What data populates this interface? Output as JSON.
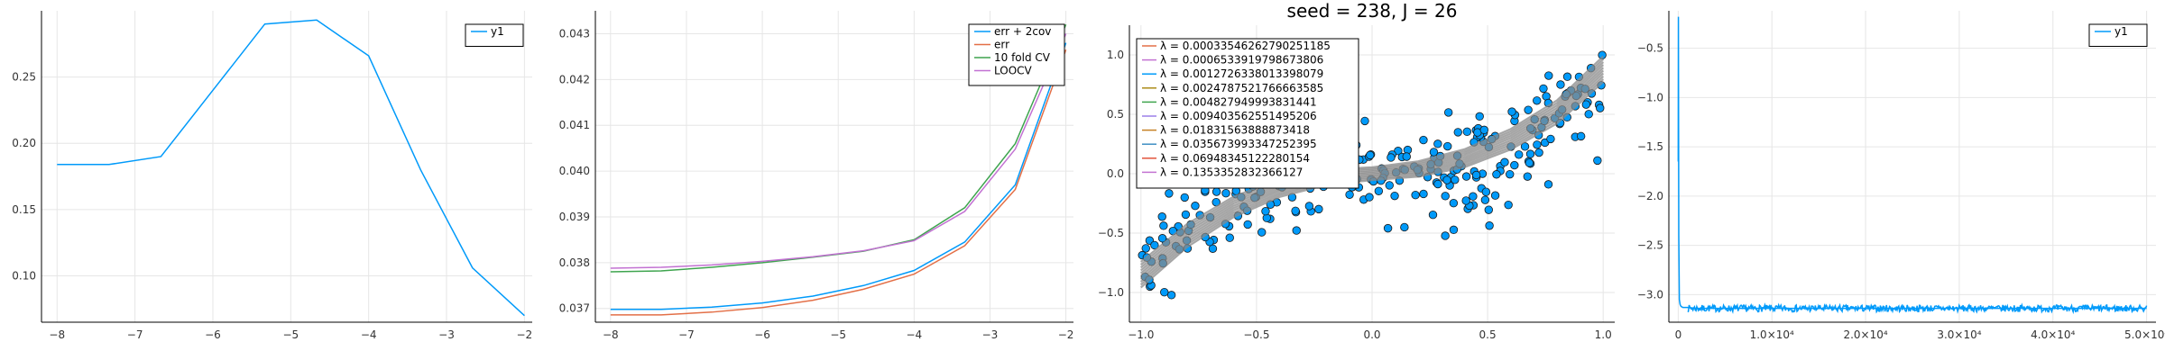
{
  "chart_data": [
    {
      "type": "line",
      "title": "",
      "xlabel": "",
      "ylabel": "",
      "xlim": [
        -8.2,
        -1.9
      ],
      "ylim": [
        0.065,
        0.3
      ],
      "xticks": [
        -8,
        -7,
        -6,
        -5,
        -4,
        -3,
        -2
      ],
      "xtick_labels": [
        "−8",
        "−7",
        "−6",
        "−5",
        "−4",
        "−3",
        "−2"
      ],
      "yticks": [
        0.1,
        0.15,
        0.2,
        0.25
      ],
      "ytick_labels": [
        "0.10",
        "0.15",
        "0.20",
        "0.25"
      ],
      "grid": true,
      "legend_position": "top-right",
      "series": [
        {
          "name": "y1",
          "color": "#009AFA",
          "x": [
            -8.0,
            -7.333,
            -6.667,
            -6.0,
            -5.333,
            -4.667,
            -4.0,
            -3.333,
            -2.667,
            -2.0
          ],
          "y": [
            0.184,
            0.184,
            0.19,
            0.24,
            0.29,
            0.293,
            0.266,
            0.18,
            0.106,
            0.07
          ]
        }
      ]
    },
    {
      "type": "line",
      "title": "",
      "xlabel": "",
      "ylabel": "",
      "xlim": [
        -8.2,
        -1.9
      ],
      "ylim": [
        0.0367,
        0.0435
      ],
      "xticks": [
        -8,
        -7,
        -6,
        -5,
        -4,
        -3,
        -2
      ],
      "xtick_labels": [
        "−8",
        "−7",
        "−6",
        "−5",
        "−4",
        "−3",
        "−2"
      ],
      "yticks": [
        0.037,
        0.038,
        0.039,
        0.04,
        0.041,
        0.042,
        0.043
      ],
      "ytick_labels": [
        "0.037",
        "0.038",
        "0.039",
        "0.040",
        "0.041",
        "0.042",
        "0.043"
      ],
      "grid": true,
      "legend_position": "top-right",
      "series": [
        {
          "name": "err + 2cov",
          "color": "#009AFA",
          "x": [
            -8.0,
            -7.333,
            -6.667,
            -6.0,
            -5.333,
            -4.667,
            -4.0,
            -3.333,
            -2.667,
            -2.0
          ],
          "y": [
            0.03698,
            0.03698,
            0.03703,
            0.03712,
            0.03727,
            0.0375,
            0.03783,
            0.03845,
            0.0397,
            0.0428
          ]
        },
        {
          "name": "err",
          "color": "#E36F47",
          "x": [
            -8.0,
            -7.333,
            -6.667,
            -6.0,
            -5.333,
            -4.667,
            -4.0,
            -3.333,
            -2.667,
            -2.0
          ],
          "y": [
            0.03686,
            0.03686,
            0.03692,
            0.03702,
            0.03718,
            0.03742,
            0.03775,
            0.03837,
            0.0396,
            0.04265
          ]
        },
        {
          "name": "10 fold CV",
          "color": "#3EA44E",
          "x": [
            -8.0,
            -7.333,
            -6.667,
            -6.0,
            -5.333,
            -4.667,
            -4.0,
            -3.333,
            -2.667,
            -2.0
          ],
          "y": [
            0.0378,
            0.03782,
            0.0379,
            0.038,
            0.03812,
            0.03825,
            0.0385,
            0.0392,
            0.0406,
            0.0432
          ]
        },
        {
          "name": "LOOCV",
          "color": "#C271D2",
          "x": [
            -8.0,
            -7.333,
            -6.667,
            -6.0,
            -5.333,
            -4.667,
            -4.0,
            -3.333,
            -2.667,
            -2.0
          ],
          "y": [
            0.03788,
            0.0379,
            0.03795,
            0.03803,
            0.03813,
            0.03826,
            0.03848,
            0.03912,
            0.04048,
            0.043
          ]
        }
      ]
    },
    {
      "type": "scatter",
      "title": "seed = 238, J = 26",
      "xlabel": "",
      "ylabel": "",
      "xlim": [
        -1.05,
        1.05
      ],
      "ylim": [
        -1.25,
        1.25
      ],
      "xticks": [
        -1.0,
        -0.5,
        0.0,
        0.5,
        1.0
      ],
      "xtick_labels": [
        "−1.0",
        "−0.5",
        "0.0",
        "0.5",
        "1.0"
      ],
      "yticks": [
        -1.0,
        -0.5,
        0.0,
        0.5,
        1.0
      ],
      "ytick_labels": [
        "−1.0",
        "−0.5",
        "0.0",
        "0.5",
        "1.0"
      ],
      "grid": true,
      "legend_position": "top-left",
      "scatter_color": "#009AFA",
      "n_points": 300,
      "fit_color": "#888888",
      "fit_curve": {
        "x": [
          -1.0,
          -0.8,
          -0.6,
          -0.4,
          -0.2,
          0.0,
          0.2,
          0.4,
          0.6,
          0.8,
          1.0
        ],
        "y": [
          -0.85,
          -0.52,
          -0.28,
          -0.12,
          -0.03,
          0.0,
          0.04,
          0.13,
          0.29,
          0.52,
          0.88
        ]
      },
      "legend": [
        {
          "label": "λ = 0.00033546262790251185",
          "color": "#E36F47"
        },
        {
          "label": "λ = 0.0006533919798673806",
          "color": "#C271D2"
        },
        {
          "label": "λ = 0.0012726338013398079",
          "color": "#009AFA"
        },
        {
          "label": "λ = 0.0024787521766663585",
          "color": "#AC8D18"
        },
        {
          "label": "λ = 0.004827949993831441",
          "color": "#3EA44E"
        },
        {
          "label": "λ = 0.009403562551495206",
          "color": "#9B7FE9"
        },
        {
          "label": "λ = 0.01831563888873418",
          "color": "#C68125"
        },
        {
          "label": "λ = 0.035673993347252395",
          "color": "#3E8FC3"
        },
        {
          "label": "λ = 0.06948345122280154",
          "color": "#E2543C"
        },
        {
          "label": "λ = 0.1353352832366127",
          "color": "#C271D2"
        }
      ]
    },
    {
      "type": "line",
      "title": "",
      "xlabel": "",
      "ylabel": "",
      "xlim": [
        -1000,
        51000
      ],
      "ylim": [
        -3.28,
        -0.12
      ],
      "xticks": [
        0,
        10000,
        20000,
        30000,
        40000,
        50000
      ],
      "xtick_labels": [
        "0",
        "1.0×10⁴",
        "2.0×10⁴",
        "3.0×10⁴",
        "4.0×10⁴",
        "5.0×10⁴"
      ],
      "yticks": [
        -3.0,
        -2.5,
        -2.0,
        -1.5,
        -1.0,
        -0.5
      ],
      "ytick_labels": [
        "−3.0",
        "−2.5",
        "−2.0",
        "−1.5",
        "−1.0",
        "−0.5"
      ],
      "grid": true,
      "legend_position": "top-right",
      "series": [
        {
          "name": "y1",
          "color": "#009AFA",
          "x": [
            0,
            20,
            60,
            120,
            200,
            300,
            500,
            1000,
            2000,
            5000,
            10000,
            20000,
            30000,
            40000,
            50000
          ],
          "y": [
            -1.65,
            -0.18,
            -2.4,
            -3.05,
            -3.1,
            -3.12,
            -3.13,
            -3.13,
            -3.14,
            -3.14,
            -3.14,
            -3.14,
            -3.14,
            -3.14,
            -3.14
          ]
        }
      ]
    }
  ]
}
